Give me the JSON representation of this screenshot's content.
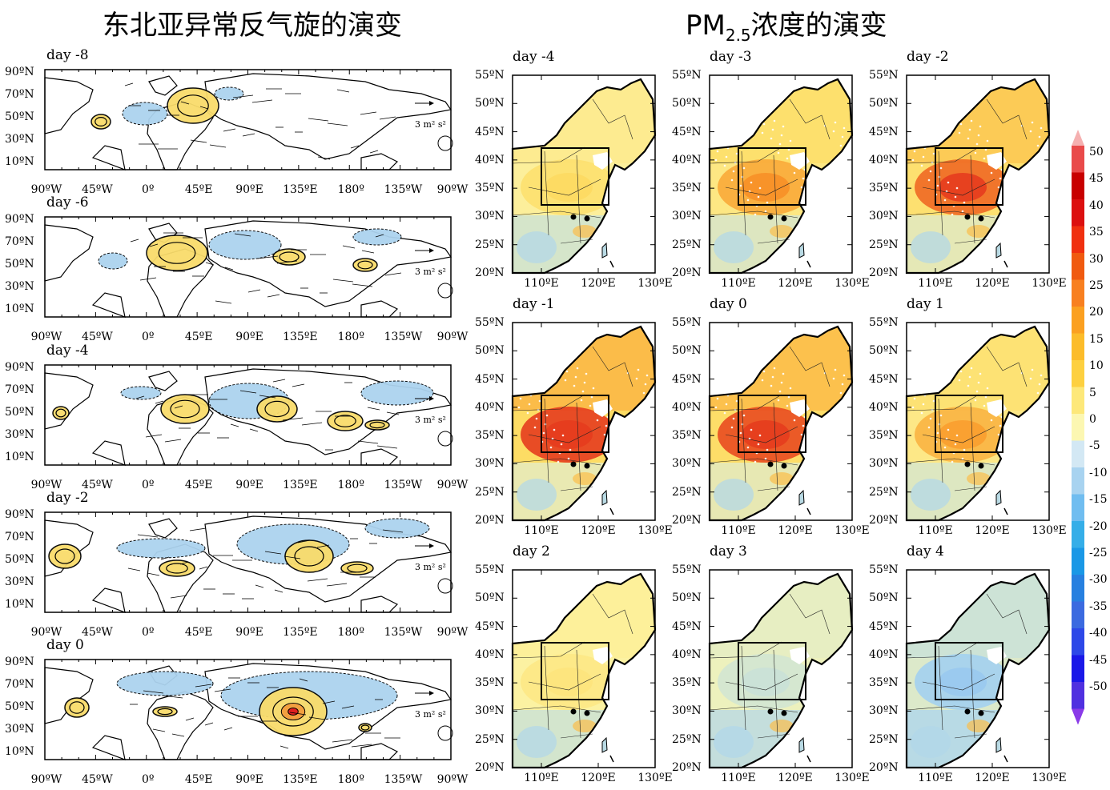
{
  "titles": {
    "left": "东北亚异常反气旋的演变",
    "right_main": "PM",
    "right_sub": "2.5",
    "right_rest": "浓度的演变"
  },
  "global_panels": [
    {
      "label": "day -8"
    },
    {
      "label": "day -6"
    },
    {
      "label": "day -4"
    },
    {
      "label": "day -2"
    },
    {
      "label": "day 0"
    }
  ],
  "global_axes": {
    "lat_labels": [
      "90ºN",
      "70ºN",
      "50ºN",
      "30ºN",
      "10ºN"
    ],
    "lon_labels": [
      "90ºW",
      "45ºW",
      "0º",
      "45ºE",
      "90ºE",
      "135ºE",
      "180º",
      "135ºW",
      "90ºW"
    ],
    "ref_vector_text": "3 m² s²"
  },
  "regional_panels": [
    {
      "label": "day -4",
      "intensity": 0.3
    },
    {
      "label": "day -3",
      "intensity": 0.6
    },
    {
      "label": "day -2",
      "intensity": 0.85
    },
    {
      "label": "day -1",
      "intensity": 1.0
    },
    {
      "label": "day 0",
      "intensity": 0.95
    },
    {
      "label": "day 1",
      "intensity": 0.55
    },
    {
      "label": "day 2",
      "intensity": 0.2
    },
    {
      "label": "day 3",
      "intensity": -0.25
    },
    {
      "label": "day 4",
      "intensity": -0.55
    }
  ],
  "regional_axes": {
    "lat_labels": [
      "55ºN",
      "50ºN",
      "45ºN",
      "40ºN",
      "35ºN",
      "30ºN",
      "25ºN",
      "20ºN"
    ],
    "lon_labels": [
      "110ºE",
      "120ºE",
      "130ºE"
    ]
  },
  "colorbar": {
    "labels": [
      "50",
      "45",
      "40",
      "35",
      "30",
      "25",
      "20",
      "15",
      "10",
      "5",
      "0",
      "-5",
      "-10",
      "-15",
      "-20",
      "-25",
      "-30",
      "-35",
      "-40",
      "-45",
      "-50"
    ],
    "colors": [
      "#e94a4a",
      "#c80000",
      "#dc1010",
      "#f03010",
      "#f05a10",
      "#f88020",
      "#fba020",
      "#fcbc2a",
      "#fdd040",
      "#fde87a",
      "#fcf7b2",
      "#d3e8f4",
      "#a8d3f0",
      "#70bdf0",
      "#35aee8",
      "#1a98e6",
      "#2780e0",
      "#3b6ae0",
      "#2d48e8",
      "#1a18e8",
      "#5030e0"
    ],
    "top_arrow_color": "#f5b0b0",
    "bottom_arrow_color": "#8a3ae8"
  }
}
